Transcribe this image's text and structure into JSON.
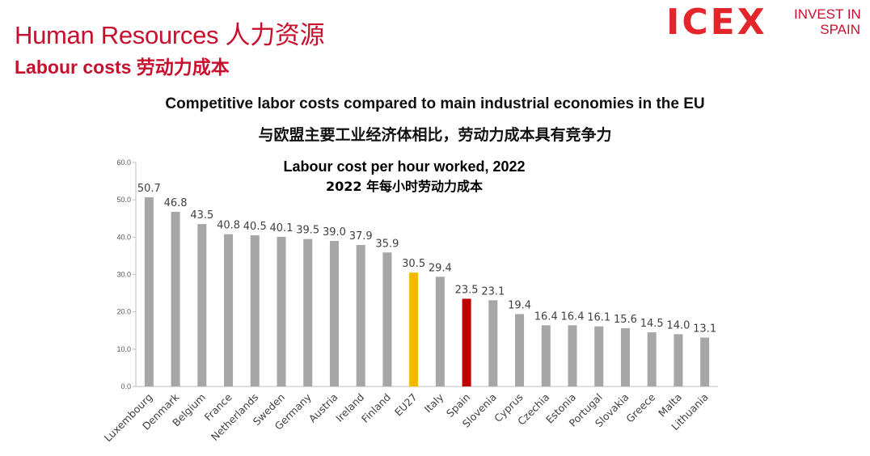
{
  "header": {
    "title": "Human Resources 人力资源",
    "subtitle": "Labour costs 劳动力成本"
  },
  "logos": {
    "icex": "ICEX",
    "invest_line1": "INVEST IN",
    "invest_line2": "SPAIN"
  },
  "slide_subtitle_en": "Competitive  labor costs compared  to main industrial economies in the EU",
  "slide_subtitle_zh": "与欧盟主要工业经济体相比，劳动力成本具有竞争力",
  "chart_data": {
    "type": "bar",
    "title": "Labour cost per hour worked, 2022",
    "title_zh": "2022 年每小时劳动力成本",
    "categories": [
      "Luxembourg",
      "Denmark",
      "Belgium",
      "France",
      "Netherlands",
      "Sweden",
      "Germany",
      "Austria",
      "Ireland",
      "Finland",
      "EU27",
      "Italy",
      "Spain",
      "Slovenia",
      "Cyprus",
      "Czechia",
      "Estonia",
      "Portugal",
      "Slovakia",
      "Greece",
      "Malta",
      "Lithuania"
    ],
    "values": [
      50.7,
      46.8,
      43.5,
      40.8,
      40.5,
      40.1,
      39.5,
      39.0,
      37.9,
      35.9,
      30.5,
      29.4,
      23.5,
      23.1,
      19.4,
      16.4,
      16.4,
      16.1,
      15.6,
      14.5,
      14.0,
      13.1
    ],
    "value_labels": [
      "50.7",
      "46.8",
      "43.5",
      "40.8",
      "40.5",
      "40.1",
      "39.5",
      "39.0",
      "37.9",
      "35.9",
      "30.5",
      "29.4",
      "23.5",
      "23.1",
      "19.4",
      "16.4",
      "16.4",
      "16.1",
      "15.6",
      "14.5",
      "14.0",
      "13.1"
    ],
    "y_ticks": [
      "0.0",
      "10.0",
      "20.0",
      "30.0",
      "40.0",
      "50.0",
      "60.0"
    ],
    "ylim": [
      0,
      60
    ],
    "grid": false,
    "colors": {
      "default": "#a6a6a6",
      "EU27": "#f5b800",
      "Spain": "#c00000"
    }
  }
}
